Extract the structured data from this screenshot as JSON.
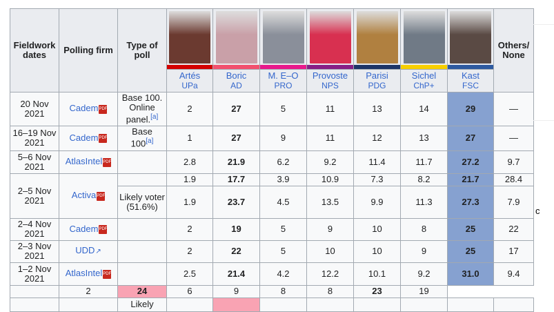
{
  "headers": {
    "dates": "Fieldwork dates",
    "firm": "Polling firm",
    "type": "Type of poll",
    "others": "Others/ None"
  },
  "candidates": [
    {
      "name": "Artés",
      "party": "UPa",
      "color": "#d40000",
      "photo": "#6b3a30"
    },
    {
      "name": "Boric",
      "party": "AD",
      "color": "#f2506e",
      "photo": "#c9a0a8"
    },
    {
      "name": "M. E–O",
      "party": "PRO",
      "color": "#e8198b",
      "photo": "#8a8f9a"
    },
    {
      "name": "Provoste",
      "party": "NPS",
      "color": "#861f86",
      "photo": "#d83050"
    },
    {
      "name": "Parisi",
      "party": "PDG",
      "color": "#1d3567",
      "photo": "#b08040"
    },
    {
      "name": "Sichel",
      "party": "ChP+",
      "color": "#f7cf00",
      "photo": "#707a86"
    },
    {
      "name": "Kast",
      "party": "FSC",
      "color": "#2e5aa0",
      "photo": "#5a4a44"
    }
  ],
  "rows": [
    {
      "date": "20 Nov 2021",
      "firm": "Cadem",
      "icon": "pdf-icon",
      "type": "Base 100. Online panel.",
      "note": "[a]",
      "values": [
        "2",
        "27",
        "5",
        "11",
        "13",
        "14",
        "29",
        "—"
      ]
    },
    {
      "date": "16–19 Nov 2021",
      "firm": "Cadem",
      "icon": "pdf-icon",
      "type": "Base 100",
      "note": "[a]",
      "values": [
        "1",
        "27",
        "9",
        "11",
        "12",
        "13",
        "27",
        "—"
      ]
    },
    {
      "date": "5–6 Nov 2021",
      "firm": "AtlasIntel",
      "icon": "pdf-icon",
      "type": "",
      "values": [
        "2.8",
        "21.9",
        "6.2",
        "9.2",
        "11.4",
        "11.7",
        "27.2",
        "9.7"
      ]
    },
    {
      "date": "2–5 Nov 2021",
      "firm": "Activa",
      "icon": "pdf-icon",
      "type": "",
      "values": [
        "1.9",
        "17.7",
        "3.9",
        "10.9",
        "7.3",
        "8.2",
        "21.7",
        "28.4"
      ]
    },
    {
      "type": "Likely voter (51.6%)",
      "values": [
        "1.9",
        "23.7",
        "4.5",
        "13.5",
        "9.9",
        "11.3",
        "27.3",
        "7.9"
      ]
    },
    {
      "date": "2–4 Nov 2021",
      "firm": "Cadem",
      "icon": "pdf-icon",
      "type": "",
      "values": [
        "2",
        "19",
        "5",
        "9",
        "10",
        "8",
        "25",
        "22"
      ]
    },
    {
      "date": "2–3 Nov 2021",
      "firm": "UDD",
      "icon": "external-link-icon",
      "type": "",
      "values": [
        "2",
        "22",
        "5",
        "10",
        "10",
        "9",
        "25",
        "17"
      ]
    },
    {
      "date": "1–2 Nov 2021",
      "firm": "AtlasIntel",
      "icon": "pdf-icon",
      "type": "",
      "values": [
        "2.5",
        "21.4",
        "4.2",
        "12.2",
        "10.1",
        "9.2",
        "31.0",
        "9.4"
      ]
    },
    {
      "type": "",
      "values": [
        "2",
        "24",
        "6",
        "9",
        "8",
        "8",
        "23",
        "19"
      ]
    },
    {
      "type": "Likely"
    }
  ],
  "pdf_label": "PDF",
  "stray_text": "c"
}
